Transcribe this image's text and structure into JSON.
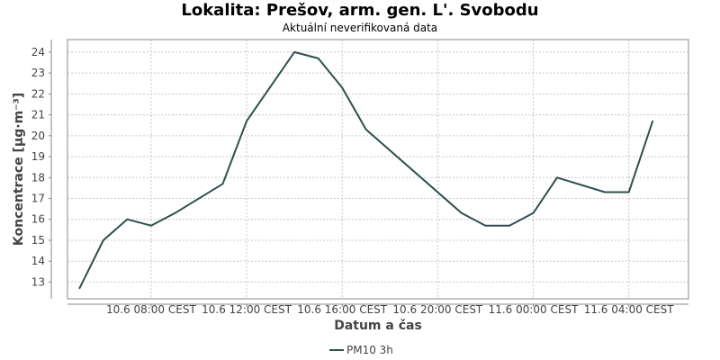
{
  "chart_data": {
    "type": "line",
    "title": "Lokalita: Prešov, arm. gen. L'. Svobodu",
    "subtitle": "Aktuální neverifikovaná data",
    "xlabel": "Datum a čas",
    "ylabel": "Koncentrace [µg·m⁻³]",
    "ylim": [
      12.2,
      24.6
    ],
    "y_ticks": [
      13,
      14,
      15,
      16,
      17,
      18,
      19,
      20,
      21,
      22,
      23,
      24
    ],
    "x_range_hours": [
      4.5,
      30.5
    ],
    "x_ticks": [
      {
        "hour": 8,
        "label": "10.6 08:00 CEST"
      },
      {
        "hour": 12,
        "label": "10.6 12:00 CEST"
      },
      {
        "hour": 16,
        "label": "10.6 16:00 CEST"
      },
      {
        "hour": 20,
        "label": "10.6 20:00 CEST"
      },
      {
        "hour": 24,
        "label": "11.6 00:00 CEST"
      },
      {
        "hour": 28,
        "label": "11.6 04:00 CEST"
      }
    ],
    "grid": true,
    "legend_position": "bottom",
    "series": [
      {
        "name": "PM10 3h",
        "color": "#2f4f4f",
        "x_hours": [
          5,
          6,
          7,
          8,
          9,
          11,
          12,
          14,
          15,
          16,
          17,
          21,
          22,
          23,
          24,
          25,
          27,
          28,
          29
        ],
        "values": [
          12.7,
          15.0,
          16.0,
          15.7,
          16.3,
          17.7,
          20.7,
          24.0,
          23.7,
          22.3,
          20.3,
          16.3,
          15.7,
          15.7,
          16.3,
          18.0,
          17.3,
          17.3,
          20.7
        ]
      }
    ]
  }
}
